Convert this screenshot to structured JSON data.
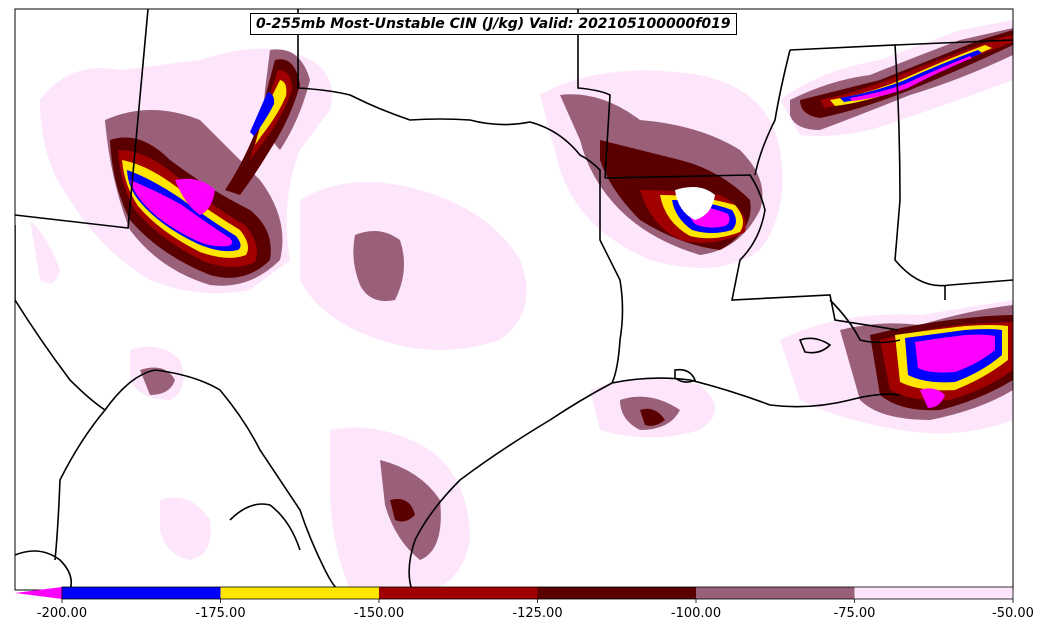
{
  "title": "0-255mb Most-Unstable CIN (J/kg) Valid: 202105100000f019",
  "colorbar": {
    "ticks": [
      "-200.00",
      "-175.00",
      "-150.00",
      "-125.00",
      "-100.00",
      "-75.00",
      "-50.00"
    ],
    "bins": [
      {
        "from": -200,
        "to": -175,
        "color": "#0000ff"
      },
      {
        "from": -175,
        "to": -150,
        "color": "#ffe600"
      },
      {
        "from": -150,
        "to": -125,
        "color": "#a00000"
      },
      {
        "from": -125,
        "to": -100,
        "color": "#5a0000"
      },
      {
        "from": -100,
        "to": -75,
        "color": "#9a6079"
      },
      {
        "from": -75,
        "to": -50,
        "color": "#fde6fb"
      }
    ],
    "extend_min_color": "#ff00ff",
    "units": "J/kg"
  },
  "colors": {
    "magenta": "#ff00ff",
    "blue": "#0000ff",
    "yellow": "#ffe600",
    "red": "#a00000",
    "darkred": "#5a0000",
    "mauve": "#9a6079",
    "pink": "#fde6fb",
    "border": "#000000"
  }
}
